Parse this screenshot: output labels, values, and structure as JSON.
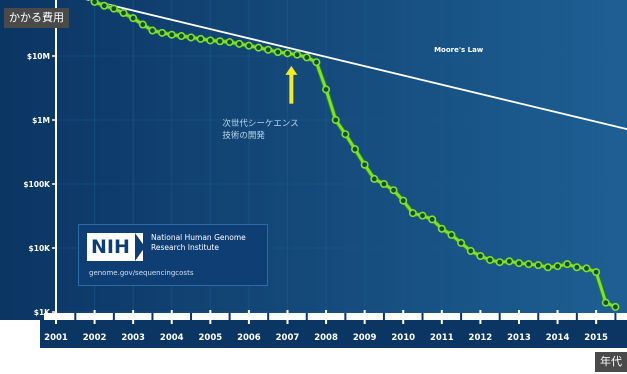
{
  "chart_data": {
    "type": "line",
    "title": "",
    "ylabel": "かかる費用",
    "xlabel": "年代",
    "yscale": "log",
    "ylim": [
      1000,
      100000000
    ],
    "xlim": [
      2001,
      2015.8
    ],
    "x_tick_labels": [
      "2001",
      "2002",
      "2003",
      "2004",
      "2005",
      "2006",
      "2007",
      "2008",
      "2009",
      "2010",
      "2011",
      "2012",
      "2013",
      "2014",
      "2015"
    ],
    "y_ticks": [
      {
        "value": 1000,
        "label": "$1K"
      },
      {
        "value": 10000,
        "label": "$10K"
      },
      {
        "value": 100000,
        "label": "$100K"
      },
      {
        "value": 1000000,
        "label": "$1M"
      },
      {
        "value": 10000000,
        "label": "$10M"
      }
    ],
    "grid": true,
    "series": [
      {
        "name": "",
        "color": "#7be03a",
        "x": [
          2001.75,
          2002.0,
          2002.25,
          2002.5,
          2002.75,
          2003.0,
          2003.25,
          2003.5,
          2003.75,
          2004.0,
          2004.25,
          2004.5,
          2004.75,
          2005.0,
          2005.25,
          2005.5,
          2005.75,
          2006.0,
          2006.25,
          2006.5,
          2006.75,
          2007.0,
          2007.25,
          2007.5,
          2007.75,
          2008.0,
          2008.25,
          2008.5,
          2008.75,
          2009.0,
          2009.25,
          2009.5,
          2009.75,
          2010.0,
          2010.25,
          2010.5,
          2010.75,
          2011.0,
          2011.25,
          2011.5,
          2011.75,
          2012.0,
          2012.25,
          2012.5,
          2012.75,
          2013.0,
          2013.25,
          2013.5,
          2013.75,
          2014.0,
          2014.25,
          2014.5,
          2014.75,
          2015.0,
          2015.25,
          2015.5
        ],
        "y": [
          95000000,
          70000000,
          61000000,
          55000000,
          47000000,
          39000000,
          31000000,
          25000000,
          23000000,
          21500000,
          20500000,
          19500000,
          18500000,
          17500000,
          17000000,
          16500000,
          15500000,
          14500000,
          13500000,
          12500000,
          11500000,
          11000000,
          10500000,
          9500000,
          8000000,
          3000000,
          1000000,
          600000,
          350000,
          200000,
          120000,
          100000,
          80000,
          55000,
          35000,
          32000,
          28000,
          20000,
          16000,
          12000,
          9000,
          7500,
          6500,
          6000,
          6200,
          5800,
          5600,
          5400,
          5000,
          5200,
          5600,
          5000,
          4800,
          4200,
          1400,
          1200
        ]
      }
    ],
    "reference_line": {
      "label": "Moore's Law",
      "color": "#ffffff",
      "x": [
        2001,
        2015.8
      ],
      "y": [
        100000000,
        720000
      ]
    },
    "annotations": [
      {
        "text": "次世代シーケエンス",
        "x": 2007.8,
        "y": 1000000,
        "color": "#b9d5ee"
      },
      {
        "text": "技術の開発",
        "x": 2007.8,
        "y": 650000,
        "color": "#b9d5ee"
      }
    ],
    "arrow": {
      "x": 2007.1,
      "y_from": 1800000,
      "y_to": 7000000,
      "color": "#f2ea2a"
    },
    "colors": {
      "plot_bg": "#0b3a67",
      "plot_edge": "#1a5a90",
      "axis_bar": "#ffffff",
      "tick_text": "#ffffff",
      "moore_line": "#ffffff",
      "series": "#7be03a"
    }
  },
  "labels": {
    "y_title": "かかる費用",
    "x_title": "年代"
  },
  "nih_panel": {
    "logo": "NIH",
    "name": "National Human Genome Research Institute",
    "url": "genome.gov/sequencingcosts"
  }
}
